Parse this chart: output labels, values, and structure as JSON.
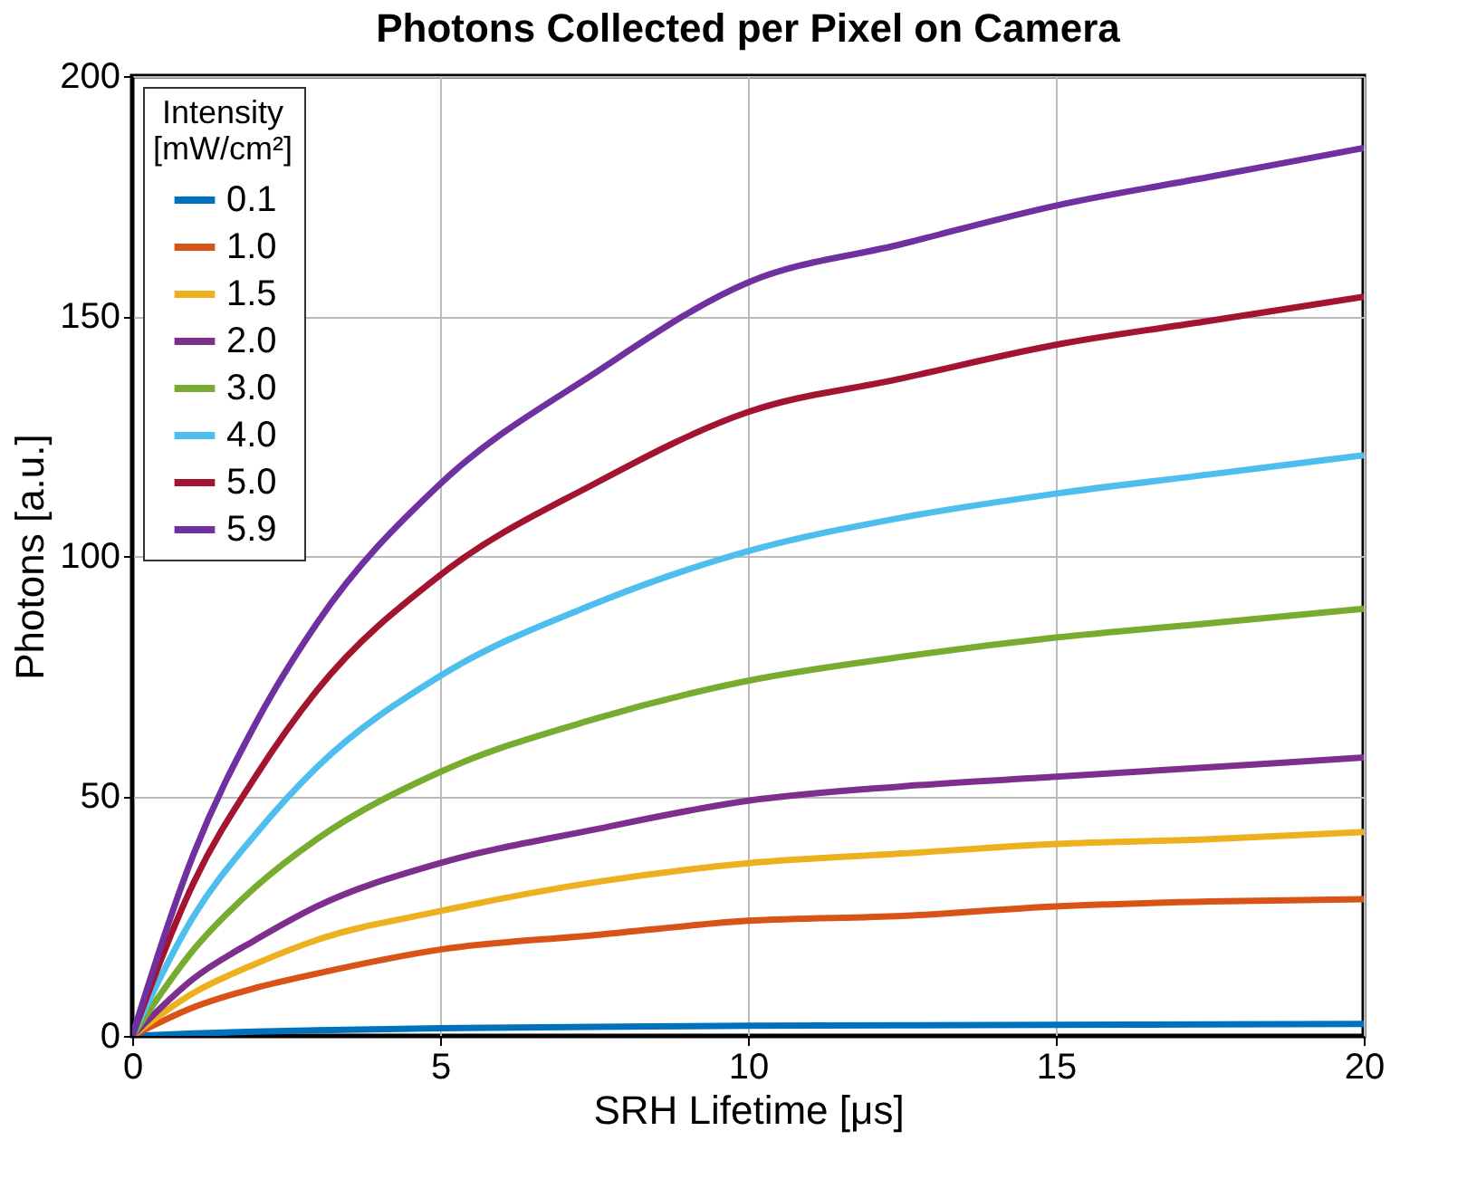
{
  "chart_data": {
    "type": "line",
    "title": "Photons Collected per Pixel on Camera",
    "xlabel": "SRH Lifetime [μs]",
    "ylabel": "Photons [a.u.]",
    "legend_title": "Intensity\n[mW/cm²]",
    "x": [
      0,
      1,
      2,
      3,
      5,
      7.5,
      10,
      12.5,
      15,
      17.5,
      20
    ],
    "xlim": [
      0,
      20
    ],
    "xticks": [
      0,
      5,
      10,
      15,
      20
    ],
    "ylim": [
      0,
      200
    ],
    "yticks": [
      0,
      50,
      100,
      150,
      200
    ],
    "grid": true,
    "legend": "top left",
    "marker": "none",
    "line_style": "solid",
    "series": [
      {
        "name": "0.1",
        "color": "#0072bd",
        "values": [
          0,
          0.5,
          0.9,
          1.2,
          1.6,
          1.9,
          2.1,
          2.2,
          2.3,
          2.4,
          2.5
        ]
      },
      {
        "name": "1.0",
        "color": "#d95319",
        "values": [
          0,
          6,
          10,
          13,
          18,
          21,
          24,
          25,
          27,
          28,
          28.5
        ]
      },
      {
        "name": "1.5",
        "color": "#edb120",
        "values": [
          0,
          9,
          15,
          20,
          26,
          32,
          36,
          38,
          40,
          41,
          42.5
        ]
      },
      {
        "name": "2.0",
        "color": "#7e2f8e",
        "values": [
          0,
          12,
          20,
          27,
          36,
          43,
          49,
          52,
          54,
          56,
          58
        ]
      },
      {
        "name": "3.0",
        "color": "#77ac30",
        "values": [
          0,
          18,
          31,
          41,
          55,
          66,
          74,
          79,
          83,
          86,
          89
        ]
      },
      {
        "name": "4.0",
        "color": "#4dbeee",
        "values": [
          0,
          25,
          42,
          56,
          75,
          90,
          101,
          108,
          113,
          117,
          121
        ]
      },
      {
        "name": "5.0",
        "color": "#a2142f",
        "values": [
          0,
          32,
          54,
          72,
          96,
          115,
          130,
          137,
          144,
          149,
          154
        ]
      },
      {
        "name": "5.9",
        "color": "#7030a0",
        "values": [
          0,
          38,
          65,
          86,
          115,
          138,
          157,
          165,
          173,
          179,
          185
        ]
      }
    ]
  }
}
